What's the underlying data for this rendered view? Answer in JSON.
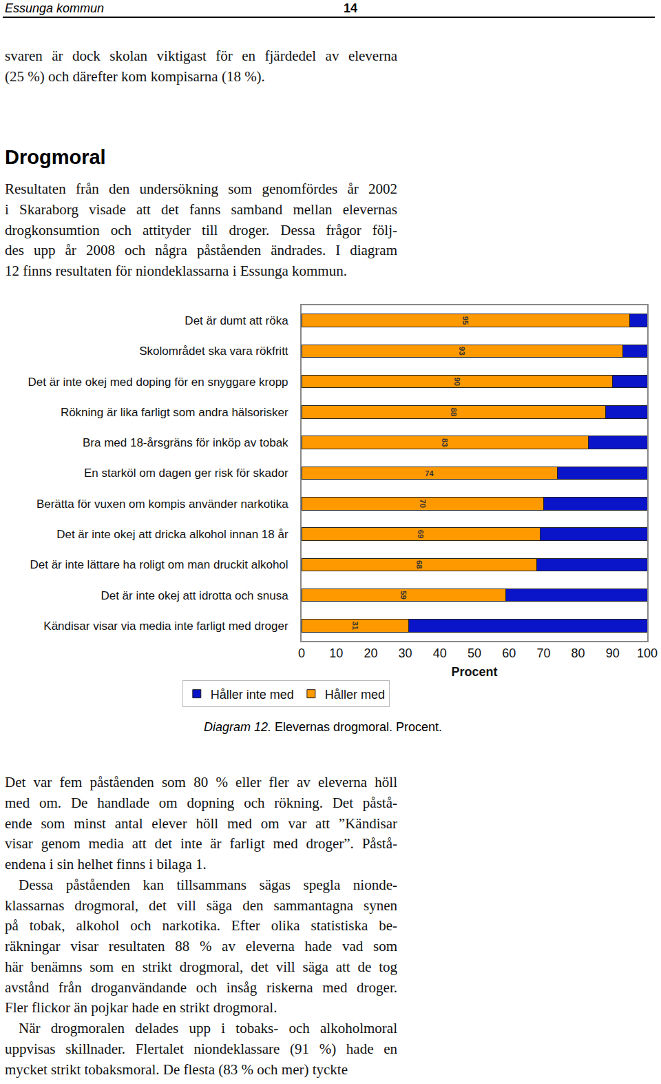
{
  "header": {
    "left": "Essunga kommun",
    "page": "14"
  },
  "top_text": [
    [
      "svaren är dock skolan viktigast för en fjärdedel av eleverna",
      "(25 %) och därefter kom kompisarna (18 %)."
    ]
  ],
  "section": {
    "title": "Drogmoral",
    "intro": [
      [
        "Resultaten från den undersökning som genomfördes år 2002",
        "i Skaraborg visade att det fanns samband mellan elevernas",
        "drogkonsumtion och attityder till droger. Dessa frågor följ-",
        "des upp år 2008 och några påståenden ändrades. I diagram",
        "12 finns resultaten för niondeklassarna i Essunga kommun."
      ]
    ]
  },
  "chart_data": {
    "type": "bar",
    "orientation": "horizontal",
    "stacked": true,
    "grid": false,
    "legend": "bottom left",
    "x_label": "Procent",
    "categories": [
      "Det är dumt att röka",
      "Skolområdet ska vara rökfritt",
      "Det är inte okej med doping för en snyggare kropp",
      "Rökning är lika farligt som andra hälsorisker",
      "Bra med 18-årsgräns för inköp av tobak",
      "En starköl om dagen ger risk för skador",
      "Berätta för vuxen om kompis använder narkotika",
      "Det är inte okej att dricka alkohol innan 18 år",
      "Det är inte lättare ha roligt om man druckit alkohol",
      "Det är inte okej att idrotta och snusa",
      "Kändisar visar via media inte farligt med droger"
    ],
    "series": [
      {
        "name": "Håller med",
        "color": "#ff9900",
        "data_labels": true,
        "values": [
          95,
          93,
          90,
          88,
          83,
          74,
          70,
          69,
          68,
          59,
          31
        ]
      },
      {
        "name": "Håller inte med",
        "color": "#0a14c8",
        "values": [
          5,
          7,
          10,
          12,
          17,
          26,
          30,
          31,
          32,
          41,
          69
        ]
      }
    ],
    "xlim": [
      0,
      100
    ],
    "xticks": [
      0,
      10,
      20,
      30,
      40,
      50,
      60,
      70,
      80,
      90,
      100
    ]
  },
  "caption": {
    "label": "Diagram 12.",
    "text": "Elevernas drogmoral. Procent."
  },
  "body_text": [
    [
      "Det var fem påståenden som 80 % eller fler av eleverna höll",
      "med om. De handlade om dopning och rökning. Det påstå-",
      "ende som minst antal elever höll med om var att ”Kändisar",
      "visar genom media att det inte är farligt med droger”. Påstå-",
      "endena i sin helhet finns i bilaga 1."
    ],
    [
      "Dessa påståenden kan tillsammans sägas spegla nionde-",
      "klassarnas drogmoral, det vill säga den sammantagna synen",
      "på tobak, alkohol och narkotika. Efter olika statistiska be-",
      "räkningar visar resultaten 88 % av eleverna hade vad som",
      "här benämns som en strikt drogmoral, det vill säga att de tog",
      "avstånd från droganvändande och insåg riskerna med droger.",
      "Fler flickor än pojkar hade en strikt drogmoral."
    ],
    [
      "När drogmoralen delades upp i tobaks- och alkoholmoral",
      "uppvisas skillnader. Flertalet niondeklassare (91 %) hade en",
      "mycket strikt tobaksmoral. De flesta (83 % och mer) tyckte"
    ]
  ]
}
